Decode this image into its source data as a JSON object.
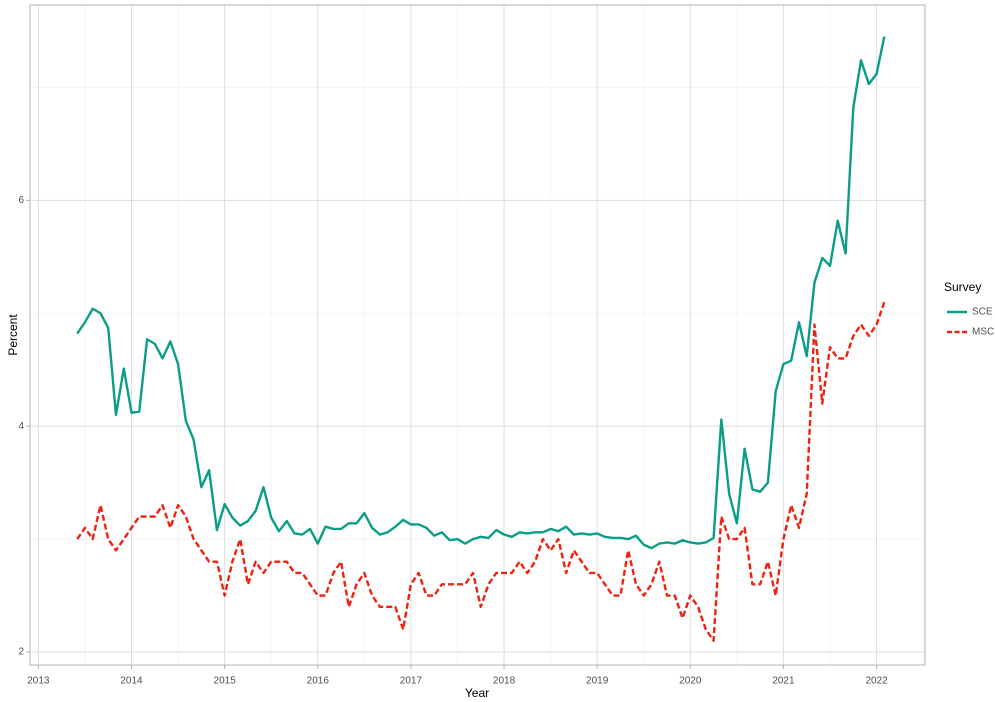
{
  "chart_data": {
    "type": "line",
    "x_label": "Year",
    "y_label": "Percent",
    "legend_title": "Survey",
    "legend": "right",
    "xlim": [
      2012.91,
      2022.52
    ],
    "ylim": [
      1.885,
      7.73
    ],
    "xticks": [
      2013,
      2014,
      2015,
      2016,
      2017,
      2018,
      2019,
      2020,
      2021,
      2022
    ],
    "yticks": [
      2,
      4,
      6
    ],
    "grid": true,
    "x": [
      2013.417,
      2013.5,
      2013.583,
      2013.667,
      2013.75,
      2013.833,
      2013.917,
      2014.0,
      2014.083,
      2014.167,
      2014.25,
      2014.333,
      2014.417,
      2014.5,
      2014.583,
      2014.667,
      2014.75,
      2014.833,
      2014.917,
      2015.0,
      2015.083,
      2015.167,
      2015.25,
      2015.333,
      2015.417,
      2015.5,
      2015.583,
      2015.667,
      2015.75,
      2015.833,
      2015.917,
      2016.0,
      2016.083,
      2016.167,
      2016.25,
      2016.333,
      2016.417,
      2016.5,
      2016.583,
      2016.667,
      2016.75,
      2016.833,
      2016.917,
      2017.0,
      2017.083,
      2017.167,
      2017.25,
      2017.333,
      2017.417,
      2017.5,
      2017.583,
      2017.667,
      2017.75,
      2017.833,
      2017.917,
      2018.0,
      2018.083,
      2018.167,
      2018.25,
      2018.333,
      2018.417,
      2018.5,
      2018.583,
      2018.667,
      2018.75,
      2018.833,
      2018.917,
      2019.0,
      2019.083,
      2019.167,
      2019.25,
      2019.333,
      2019.417,
      2019.5,
      2019.583,
      2019.667,
      2019.75,
      2019.833,
      2019.917,
      2020.0,
      2020.083,
      2020.167,
      2020.25,
      2020.333,
      2020.417,
      2020.5,
      2020.583,
      2020.667,
      2020.75,
      2020.833,
      2020.917,
      2021.0,
      2021.083,
      2021.167,
      2021.25,
      2021.333,
      2021.417,
      2021.5,
      2021.583,
      2021.667,
      2021.75,
      2021.833,
      2021.917,
      2022.0,
      2022.083
    ],
    "series": [
      {
        "name": "SCE",
        "color": "#0a9e87",
        "dash": "solid",
        "values": [
          4.82,
          4.92,
          5.04,
          5.0,
          4.87,
          4.1,
          4.51,
          4.12,
          4.13,
          4.77,
          4.73,
          4.6,
          4.75,
          4.55,
          4.05,
          3.88,
          3.46,
          3.61,
          3.08,
          3.31,
          3.19,
          3.12,
          3.16,
          3.25,
          3.46,
          3.19,
          3.07,
          3.16,
          3.05,
          3.04,
          3.09,
          2.96,
          3.11,
          3.09,
          3.09,
          3.14,
          3.14,
          3.23,
          3.1,
          3.04,
          3.06,
          3.11,
          3.17,
          3.13,
          3.13,
          3.1,
          3.03,
          3.06,
          2.99,
          3.0,
          2.96,
          3.0,
          3.02,
          3.01,
          3.08,
          3.04,
          3.02,
          3.06,
          3.05,
          3.06,
          3.06,
          3.09,
          3.07,
          3.11,
          3.04,
          3.05,
          3.04,
          3.05,
          3.02,
          3.01,
          3.01,
          3.0,
          3.03,
          2.95,
          2.92,
          2.96,
          2.97,
          2.96,
          2.99,
          2.97,
          2.96,
          2.97,
          3.01,
          4.06,
          3.4,
          3.14,
          3.8,
          3.44,
          3.42,
          3.5,
          4.31,
          4.55,
          4.58,
          4.92,
          4.62,
          5.27,
          5.49,
          5.42,
          5.82,
          5.53,
          6.82,
          7.24,
          7.03,
          7.12,
          7.45
        ]
      },
      {
        "name": "MSC",
        "color": "#ee2211",
        "dash": "dashed",
        "values": [
          3.0,
          3.1,
          3.0,
          3.3,
          3.0,
          2.9,
          3.0,
          3.1,
          3.2,
          3.2,
          3.2,
          3.3,
          3.1,
          3.3,
          3.2,
          3.0,
          2.9,
          2.8,
          2.8,
          2.5,
          2.8,
          3.0,
          2.6,
          2.8,
          2.7,
          2.8,
          2.8,
          2.8,
          2.7,
          2.7,
          2.6,
          2.5,
          2.5,
          2.7,
          2.8,
          2.4,
          2.6,
          2.7,
          2.5,
          2.4,
          2.4,
          2.4,
          2.2,
          2.6,
          2.7,
          2.5,
          2.5,
          2.6,
          2.6,
          2.6,
          2.6,
          2.7,
          2.4,
          2.6,
          2.7,
          2.7,
          2.7,
          2.8,
          2.7,
          2.8,
          3.0,
          2.9,
          3.0,
          2.7,
          2.9,
          2.8,
          2.7,
          2.7,
          2.6,
          2.5,
          2.5,
          2.9,
          2.6,
          2.5,
          2.6,
          2.8,
          2.5,
          2.5,
          2.3,
          2.5,
          2.4,
          2.2,
          2.1,
          3.2,
          3.0,
          3.0,
          3.1,
          2.6,
          2.6,
          2.8,
          2.5,
          3.0,
          3.3,
          3.1,
          3.4,
          4.9,
          4.2,
          4.7,
          4.6,
          4.6,
          4.8,
          4.9,
          4.8,
          4.9,
          5.1
        ]
      }
    ]
  }
}
